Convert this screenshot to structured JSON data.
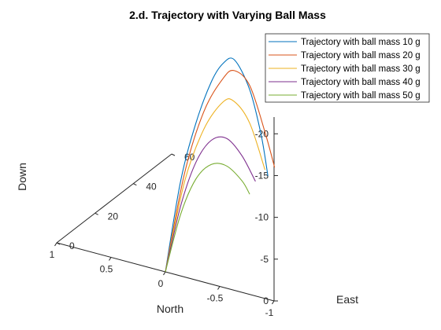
{
  "chart_data": {
    "type": "line",
    "projection": "3d",
    "title": "2.d. Trajectory with Varying Ball Mass",
    "xlabel": "North",
    "ylabel": "East",
    "zlabel": "Down",
    "xlim": [
      -1,
      1
    ],
    "ylim": [
      0,
      60
    ],
    "zlim": [
      0,
      -22
    ],
    "x_ticks": [
      "-1",
      "-0.5",
      "0",
      "0.5",
      "1"
    ],
    "y_ticks": [
      "0",
      "20",
      "40",
      "60"
    ],
    "z_ticks": [
      "0",
      "-5",
      "-10",
      "-15",
      "-20"
    ],
    "grid": false,
    "legend_position": "top-right",
    "series": [
      {
        "name": "Trajectory with ball mass 10 g",
        "color": "#0072BD",
        "points": [
          [
            0,
            0,
            0
          ],
          [
            0,
            8,
            -9.5
          ],
          [
            0,
            16,
            -15
          ],
          [
            0,
            24,
            -18.5
          ],
          [
            0,
            30,
            -19.6
          ],
          [
            0,
            36,
            -19
          ],
          [
            0,
            44,
            -14
          ],
          [
            0,
            50,
            -7.5
          ],
          [
            0,
            53.5,
            -2
          ]
        ]
      },
      {
        "name": "Trajectory with ball mass 20 g",
        "color": "#D95319",
        "points": [
          [
            0,
            0,
            0
          ],
          [
            0,
            10,
            -10
          ],
          [
            0,
            20,
            -15.6
          ],
          [
            0,
            30,
            -17.8
          ],
          [
            0,
            36,
            -17.7
          ],
          [
            0,
            44,
            -14.5
          ],
          [
            0,
            52,
            -7.5
          ],
          [
            0,
            57,
            -2.4
          ]
        ]
      },
      {
        "name": "Trajectory with ball mass 30 g",
        "color": "#EDB120",
        "points": [
          [
            0,
            0,
            0
          ],
          [
            0,
            10,
            -9
          ],
          [
            0,
            20,
            -13.5
          ],
          [
            0,
            30,
            -15
          ],
          [
            0,
            36,
            -14
          ],
          [
            0,
            44,
            -10
          ],
          [
            0,
            52,
            -3
          ]
        ]
      },
      {
        "name": "Trajectory with ball mass 40 g",
        "color": "#7E2F8E",
        "points": [
          [
            0,
            0,
            0
          ],
          [
            0,
            8,
            -6.5
          ],
          [
            0,
            16,
            -10.3
          ],
          [
            0,
            24,
            -11.5
          ],
          [
            0,
            32,
            -10.3
          ],
          [
            0,
            40,
            -6.8
          ],
          [
            0,
            47,
            -2.5
          ]
        ]
      },
      {
        "name": "Trajectory with ball mass 50 g",
        "color": "#77AC30",
        "points": [
          [
            0,
            0,
            0
          ],
          [
            0,
            8,
            -5.5
          ],
          [
            0,
            16,
            -8.3
          ],
          [
            0,
            24,
            -8.6
          ],
          [
            0,
            32,
            -7
          ],
          [
            0,
            40,
            -3.8
          ],
          [
            0,
            44,
            -1.5
          ]
        ]
      }
    ]
  }
}
